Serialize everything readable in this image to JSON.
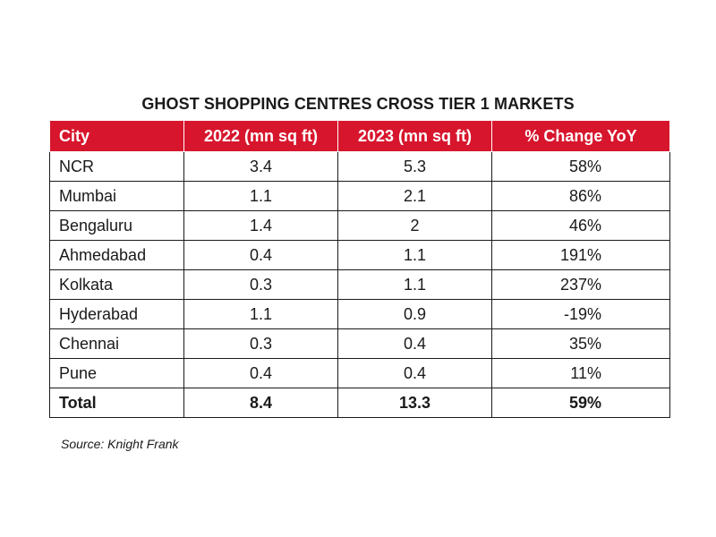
{
  "chart_data": {
    "type": "table",
    "title": "GHOST SHOPPING CENTRES CROSS TIER 1 MARKETS",
    "columns": [
      "City",
      "2022 (mn sq ft)",
      "2023 (mn sq ft)",
      "% Change YoY"
    ],
    "rows": [
      {
        "city": "NCR",
        "y2022": "3.4",
        "y2023": "5.3",
        "change": "58%"
      },
      {
        "city": "Mumbai",
        "y2022": "1.1",
        "y2023": "2.1",
        "change": "86%"
      },
      {
        "city": "Bengaluru",
        "y2022": "1.4",
        "y2023": "2",
        "change": "46%"
      },
      {
        "city": "Ahmedabad",
        "y2022": "0.4",
        "y2023": "1.1",
        "change": "191%"
      },
      {
        "city": "Kolkata",
        "y2022": "0.3",
        "y2023": "1.1",
        "change": "237%"
      },
      {
        "city": "Hyderabad",
        "y2022": "1.1",
        "y2023": "0.9",
        "change": "-19%"
      },
      {
        "city": "Chennai",
        "y2022": "0.3",
        "y2023": "0.4",
        "change": "35%"
      },
      {
        "city": "Pune",
        "y2022": "0.4",
        "y2023": "0.4",
        "change": "11%"
      }
    ],
    "total": {
      "city": "Total",
      "y2022": "8.4",
      "y2023": "13.3",
      "change": "59%"
    },
    "source": "Source: Knight Frank",
    "header_color": "#d7162d"
  }
}
